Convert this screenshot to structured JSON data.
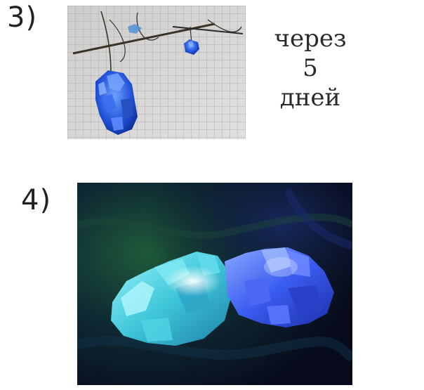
{
  "step3": {
    "label": "3)",
    "caption": {
      "line1": "через",
      "line2": "5",
      "line3": "дней"
    }
  },
  "step4": {
    "label": "4)"
  },
  "colors": {
    "crystal_blue": "#1f4fd6",
    "crystal_cyan": "#3fc7d9",
    "graph_paper": "#d6d4d2",
    "background": "#ffffff"
  }
}
